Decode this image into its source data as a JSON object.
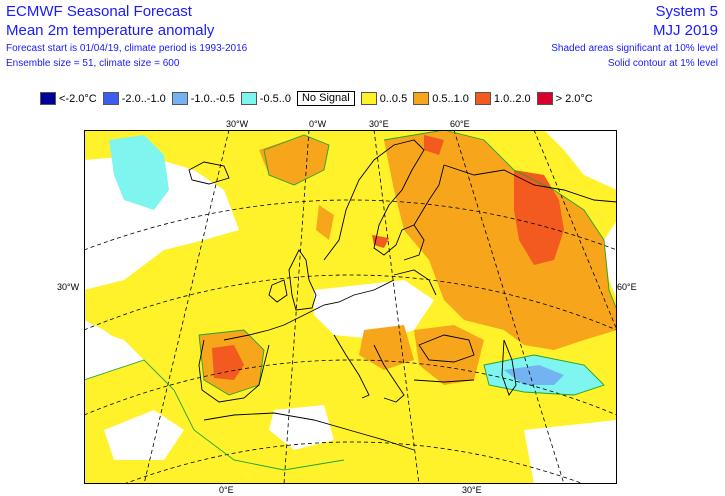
{
  "header": {
    "title": "ECMWF Seasonal Forecast",
    "subtitle": "Mean 2m temperature anomaly",
    "forecast_info": "Forecast start is 01/04/19, climate period is 1993-2016",
    "ensemble_info": "Ensemble size = 51, climate size = 600",
    "system": "System 5",
    "period": "MJJ 2019",
    "significance_shaded": "Shaded areas significant at 10% level",
    "significance_contour": "Solid contour at 1% level"
  },
  "legend": [
    {
      "label": "<-2.0°C",
      "color": "#00009b"
    },
    {
      "label": "-2.0..-1.0",
      "color": "#3a5df0"
    },
    {
      "label": "-1.0..-0.5",
      "color": "#74b3f2"
    },
    {
      "label": "-0.5..0",
      "color": "#7ff5f0"
    },
    {
      "label": "No Signal",
      "color": null
    },
    {
      "label": "0..0.5",
      "color": "#fff22a"
    },
    {
      "label": "0.5..1.0",
      "color": "#f7a61c"
    },
    {
      "label": "1.0..2.0",
      "color": "#f25a1f"
    },
    {
      "label": "> 2.0°C",
      "color": "#d9002a"
    }
  ],
  "map": {
    "axis_labels": {
      "top": [
        "30°W",
        "0°W",
        "30°E",
        "60°E"
      ],
      "left": [
        "30°W"
      ],
      "right": [
        "60°E"
      ],
      "bottom": [
        "0°E",
        "30°E"
      ]
    }
  }
}
